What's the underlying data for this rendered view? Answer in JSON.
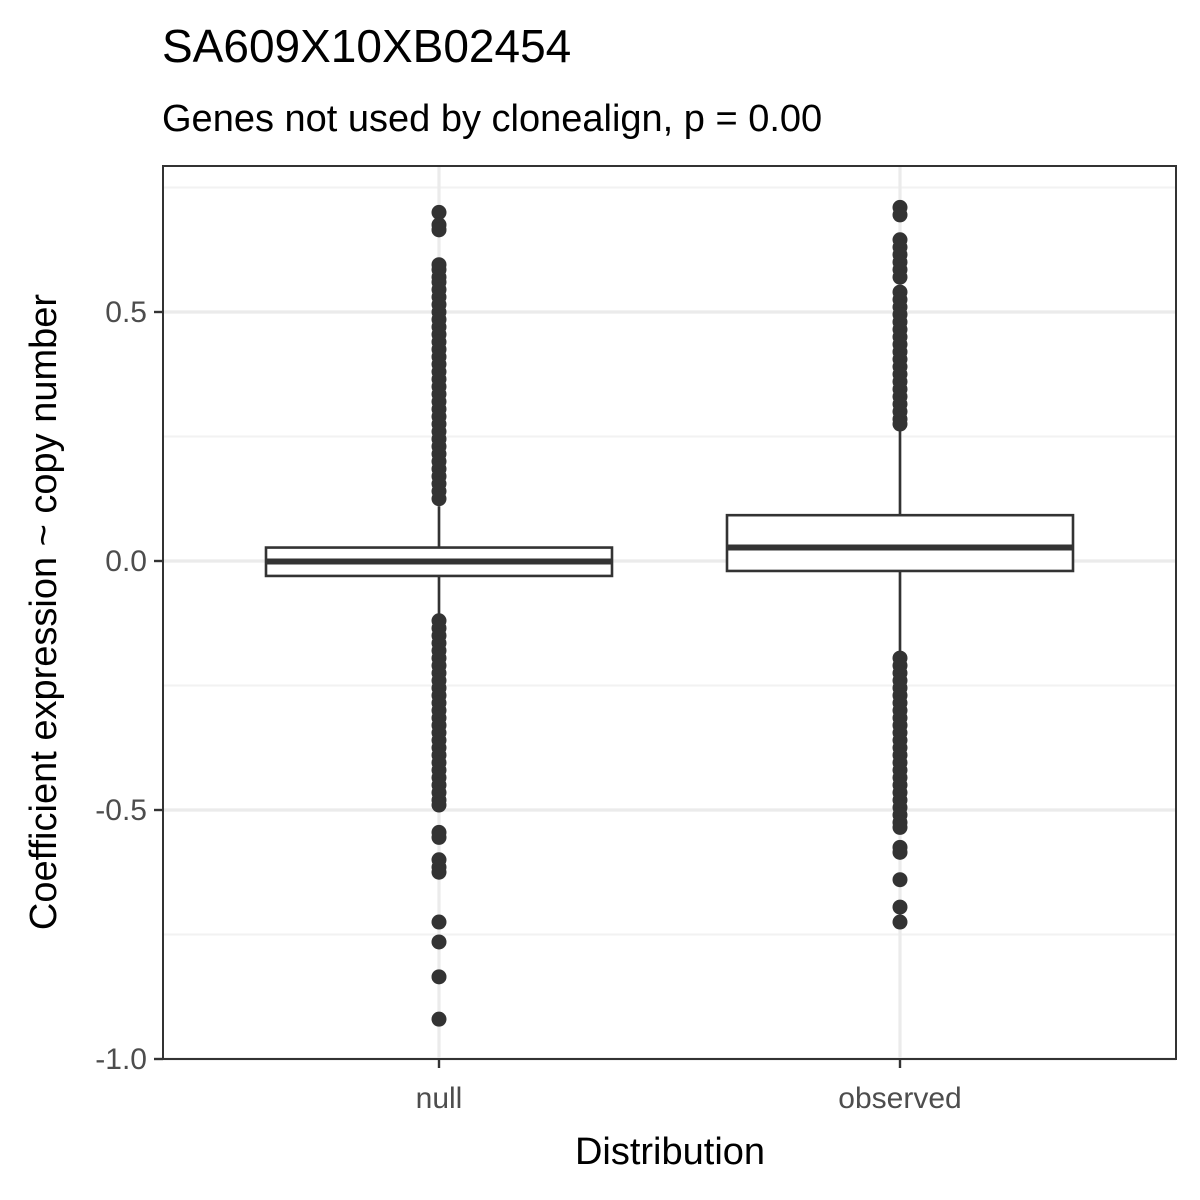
{
  "chart_data": {
    "type": "boxplot",
    "title": "SA609X10XB02454",
    "subtitle": "Genes not used by clonealign, p = 0.00",
    "xlabel": "Distribution",
    "ylabel": "Coefficient expression ~ copy number",
    "categories": [
      "null",
      "observed"
    ],
    "ylim": [
      -1.0,
      0.75
    ],
    "yticks": [
      -1.0,
      -0.5,
      0.0,
      0.5
    ],
    "ytick_labels": [
      "-1.0",
      "-0.5",
      "0.0",
      "0.5"
    ],
    "grid": true,
    "boxes": [
      {
        "category": "null",
        "q1": -0.03,
        "median": -0.001,
        "q3": 0.027,
        "whisker_low": -0.11,
        "whisker_high": 0.11,
        "outliers": [
          0.7,
          0.675,
          0.665,
          0.595,
          0.585,
          0.57,
          0.56,
          0.545,
          0.53,
          0.515,
          0.5,
          0.485,
          0.47,
          0.455,
          0.44,
          0.425,
          0.41,
          0.395,
          0.38,
          0.365,
          0.35,
          0.335,
          0.32,
          0.305,
          0.29,
          0.275,
          0.26,
          0.245,
          0.23,
          0.215,
          0.2,
          0.185,
          0.17,
          0.155,
          0.14,
          0.125,
          -0.12,
          -0.135,
          -0.15,
          -0.165,
          -0.18,
          -0.195,
          -0.21,
          -0.225,
          -0.24,
          -0.255,
          -0.27,
          -0.285,
          -0.3,
          -0.315,
          -0.33,
          -0.345,
          -0.36,
          -0.375,
          -0.39,
          -0.405,
          -0.42,
          -0.435,
          -0.45,
          -0.465,
          -0.48,
          -0.49,
          -0.545,
          -0.555,
          -0.6,
          -0.615,
          -0.625,
          -0.725,
          -0.765,
          -0.835,
          -0.92
        ]
      },
      {
        "category": "observed",
        "q1": -0.02,
        "median": 0.027,
        "q3": 0.092,
        "whisker_low": -0.19,
        "whisker_high": 0.27,
        "outliers": [
          0.71,
          0.695,
          0.645,
          0.63,
          0.615,
          0.6,
          0.585,
          0.57,
          0.54,
          0.525,
          0.51,
          0.495,
          0.48,
          0.465,
          0.45,
          0.435,
          0.42,
          0.405,
          0.39,
          0.375,
          0.36,
          0.345,
          0.33,
          0.315,
          0.3,
          0.285,
          0.275,
          -0.195,
          -0.21,
          -0.225,
          -0.24,
          -0.255,
          -0.27,
          -0.285,
          -0.3,
          -0.315,
          -0.33,
          -0.345,
          -0.36,
          -0.375,
          -0.39,
          -0.405,
          -0.42,
          -0.435,
          -0.45,
          -0.465,
          -0.48,
          -0.495,
          -0.51,
          -0.525,
          -0.535,
          -0.575,
          -0.585,
          -0.64,
          -0.695,
          -0.725
        ]
      }
    ],
    "colors": {
      "box_stroke": "#333333",
      "box_fill": "#ffffff",
      "point": "#333333",
      "grid_major": "#ebebeb",
      "grid_minor": "#f2f2f2",
      "panel_border": "#333333",
      "tick_text": "#4d4d4d"
    }
  }
}
